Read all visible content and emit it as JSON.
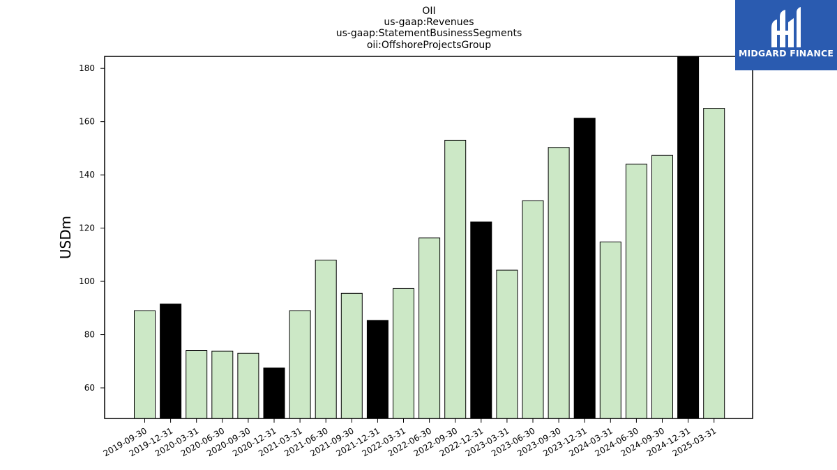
{
  "chart_data": {
    "type": "bar",
    "title_lines": [
      "OII",
      "us-gaap:Revenues",
      "us-gaap:StatementBusinessSegments",
      "oii:OffshoreProjectsGroup"
    ],
    "ylabel": "USDm",
    "xlabel": "",
    "ylim": [
      48.5,
      184.5
    ],
    "yticks": [
      60,
      80,
      100,
      120,
      140,
      160,
      180
    ],
    "categories": [
      "2019-09-30",
      "2019-12-31",
      "2020-03-31",
      "2020-06-30",
      "2020-09-30",
      "2020-12-31",
      "2021-03-31",
      "2021-06-30",
      "2021-09-30",
      "2021-12-31",
      "2022-03-31",
      "2022-06-30",
      "2022-09-30",
      "2022-12-31",
      "2023-03-31",
      "2023-06-30",
      "2023-09-30",
      "2023-12-31",
      "2024-03-31",
      "2024-06-30",
      "2024-09-30",
      "2024-12-31",
      "2025-03-31"
    ],
    "values": [
      89.0,
      91.5,
      74.0,
      73.8,
      73.0,
      67.5,
      89.0,
      108.0,
      95.5,
      85.3,
      97.3,
      116.3,
      153.0,
      122.3,
      104.2,
      130.3,
      150.3,
      161.3,
      114.8,
      144.0,
      147.3,
      184.5,
      165.0
    ],
    "highlight": [
      false,
      true,
      false,
      false,
      false,
      true,
      false,
      false,
      false,
      true,
      false,
      false,
      false,
      true,
      false,
      false,
      false,
      true,
      false,
      false,
      false,
      true,
      false
    ],
    "colors": {
      "normal": "#cce8c6",
      "highlight": "#000000",
      "edge": "#000000"
    },
    "grid": false,
    "legend": "none"
  },
  "logo": {
    "text": "MIDGARD FINANCE",
    "background": "#2a5bb0"
  }
}
